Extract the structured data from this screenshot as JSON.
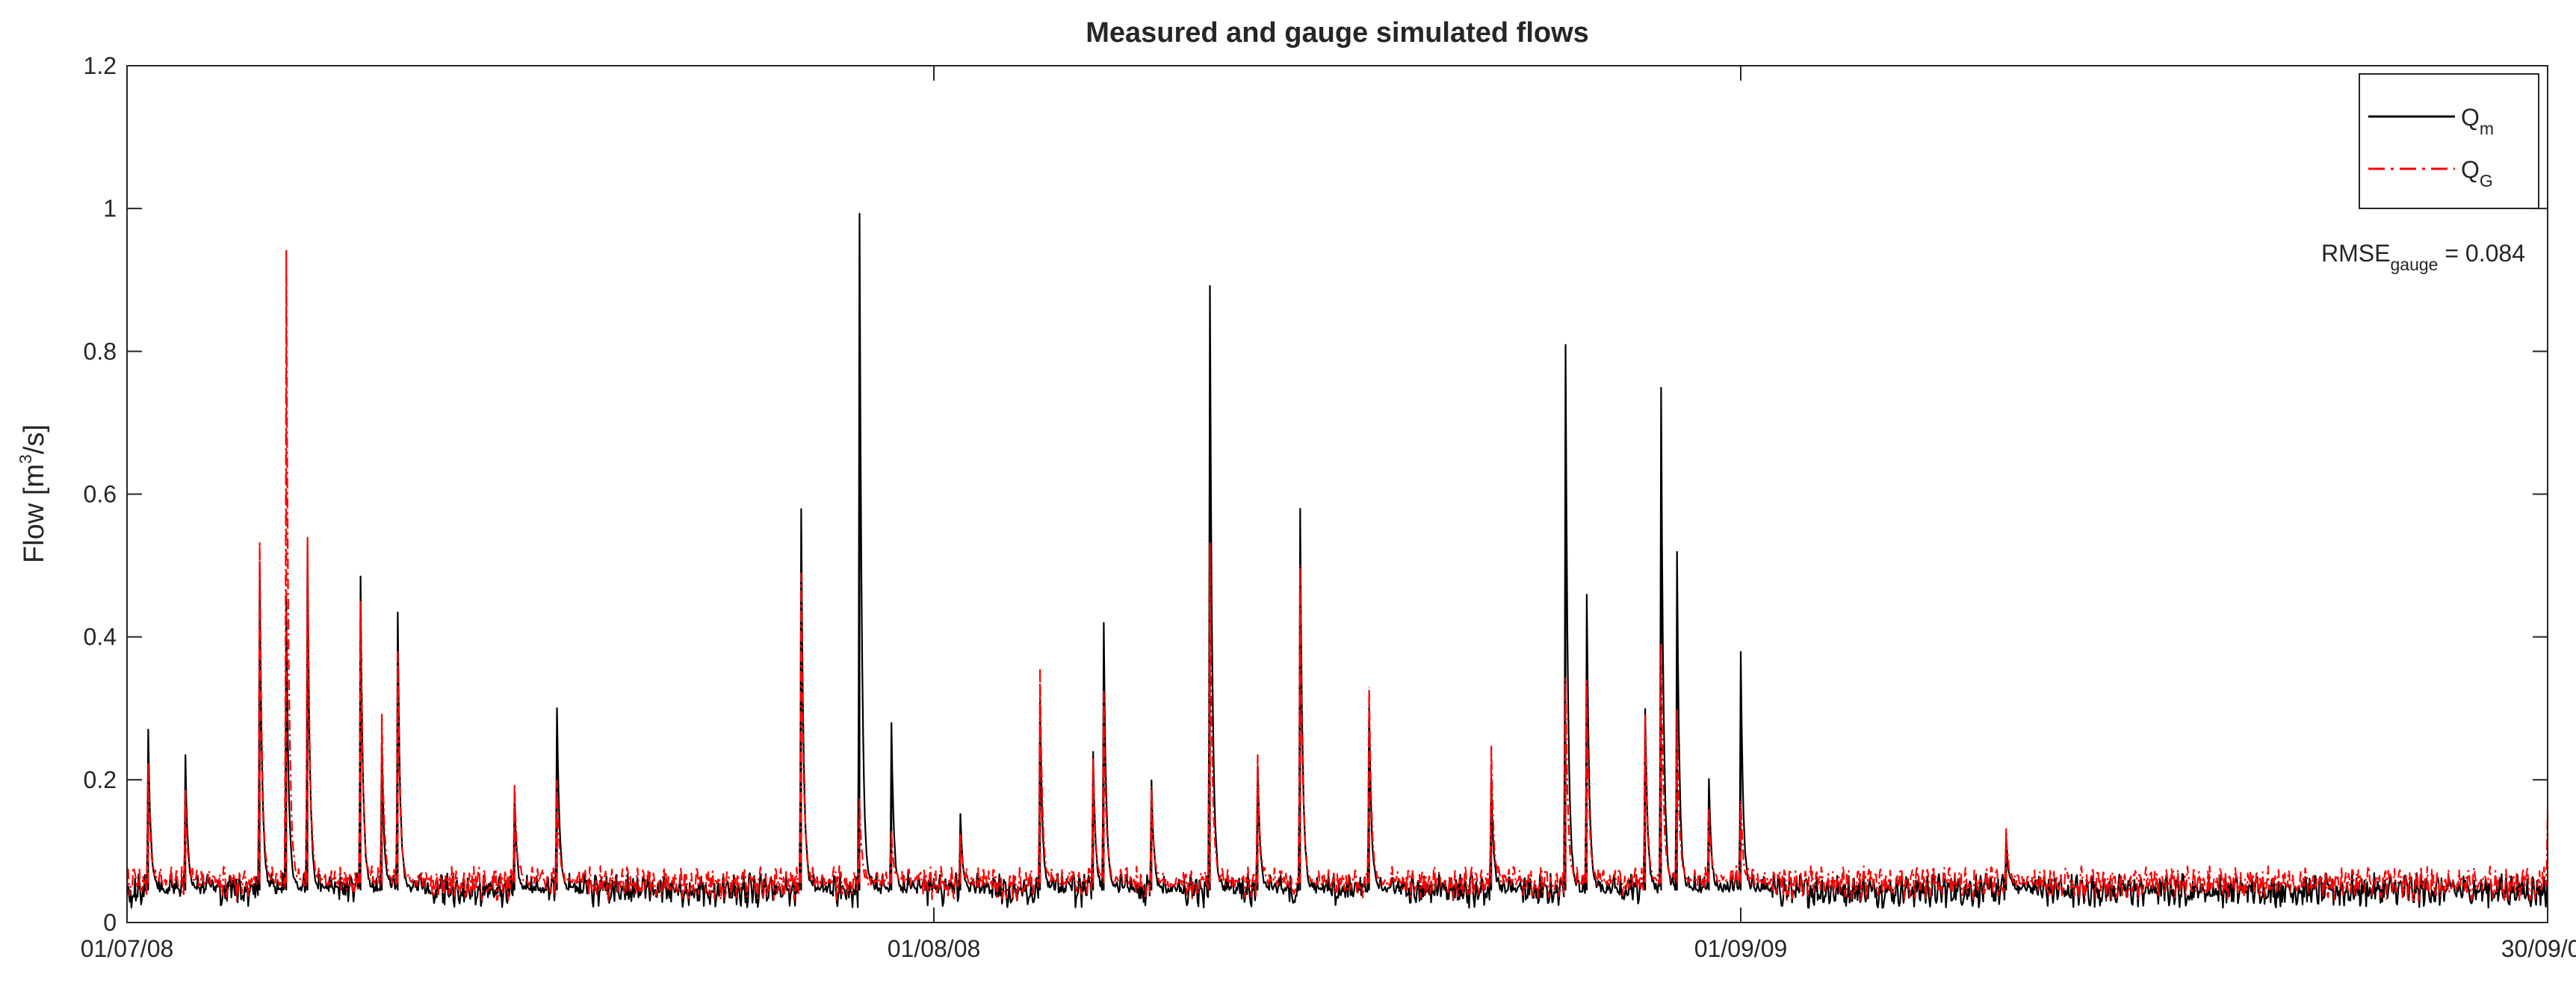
{
  "chart_data": {
    "type": "line",
    "title": "Measured and gauge simulated flows",
    "ylabel": "Flow [m3/s]",
    "ylabel_parts": {
      "main": "Flow [m",
      "sup": "3",
      "tail": "/s]"
    },
    "xlabel": "",
    "ylim": [
      0,
      1.2
    ],
    "yticks": [
      0,
      0.2,
      0.4,
      0.6,
      0.8,
      1,
      1.2
    ],
    "ytick_labels": [
      "0",
      "0.2",
      "0.4",
      "0.6",
      "0.8",
      "1",
      "1.2"
    ],
    "xlim": [
      "2008-07-01",
      "2009-09-30"
    ],
    "xtick_labels": [
      "01/07/08",
      "01/08/08",
      "01/09/09",
      "30/09/09"
    ],
    "grid": false,
    "legend_location": "top-right",
    "annotation": {
      "main": "RMSE",
      "sub": "gauge",
      "tail": " = 0.084"
    },
    "series": [
      {
        "name": "Qm",
        "legend_main": "Q",
        "legend_sub": "m",
        "color": "#000000",
        "style": "solid",
        "baseline": 0.045,
        "peaks": [
          {
            "x": "2008-07-05",
            "y": 0.27
          },
          {
            "x": "2008-07-12",
            "y": 0.23
          },
          {
            "x": "2008-07-26",
            "y": 0.5
          },
          {
            "x": "2008-07-31",
            "y": 0.45
          },
          {
            "x": "2008-08-04",
            "y": 0.53
          },
          {
            "x": "2008-08-14",
            "y": 0.48
          },
          {
            "x": "2008-08-18",
            "y": 0.25
          },
          {
            "x": "2008-08-21",
            "y": 0.43
          },
          {
            "x": "2008-09-12",
            "y": 0.18
          },
          {
            "x": "2008-09-20",
            "y": 0.3
          },
          {
            "x": "2008-11-05",
            "y": 0.58
          },
          {
            "x": "2008-11-16",
            "y": 0.99
          },
          {
            "x": "2008-11-22",
            "y": 0.28
          },
          {
            "x": "2008-12-05",
            "y": 0.15
          },
          {
            "x": "2008-12-20",
            "y": 0.31
          },
          {
            "x": "2008-12-30",
            "y": 0.24
          },
          {
            "x": "2009-01-01",
            "y": 0.42
          },
          {
            "x": "2009-01-10",
            "y": 0.2
          },
          {
            "x": "2009-01-21",
            "y": 0.89
          },
          {
            "x": "2009-01-30",
            "y": 0.22
          },
          {
            "x": "2009-02-07",
            "y": 0.58
          },
          {
            "x": "2009-02-20",
            "y": 0.3
          },
          {
            "x": "2009-03-15",
            "y": 0.2
          },
          {
            "x": "2009-03-29",
            "y": 0.81
          },
          {
            "x": "2009-04-02",
            "y": 0.46
          },
          {
            "x": "2009-04-13",
            "y": 0.3
          },
          {
            "x": "2009-04-16",
            "y": 0.75
          },
          {
            "x": "2009-04-19",
            "y": 0.52
          },
          {
            "x": "2009-04-25",
            "y": 0.2
          },
          {
            "x": "2009-05-01",
            "y": 0.38
          },
          {
            "x": "2009-06-20",
            "y": 0.12
          }
        ]
      },
      {
        "name": "QG",
        "legend_main": "Q",
        "legend_sub": "G",
        "color": "#ff0000",
        "style": "dashdot",
        "baseline": 0.055,
        "peaks": [
          {
            "x": "2008-07-05",
            "y": 0.22
          },
          {
            "x": "2008-07-12",
            "y": 0.18
          },
          {
            "x": "2008-07-26",
            "y": 0.53
          },
          {
            "x": "2008-07-31",
            "y": 0.94
          },
          {
            "x": "2008-08-04",
            "y": 0.54
          },
          {
            "x": "2008-08-14",
            "y": 0.45
          },
          {
            "x": "2008-08-18",
            "y": 0.29
          },
          {
            "x": "2008-08-21",
            "y": 0.38
          },
          {
            "x": "2008-09-12",
            "y": 0.19
          },
          {
            "x": "2008-09-20",
            "y": 0.2
          },
          {
            "x": "2008-11-05",
            "y": 0.49
          },
          {
            "x": "2008-11-16",
            "y": 0.17
          },
          {
            "x": "2008-11-22",
            "y": 0.13
          },
          {
            "x": "2008-12-05",
            "y": 0.12
          },
          {
            "x": "2008-12-20",
            "y": 0.35
          },
          {
            "x": "2008-12-30",
            "y": 0.23
          },
          {
            "x": "2009-01-01",
            "y": 0.32
          },
          {
            "x": "2009-01-10",
            "y": 0.19
          },
          {
            "x": "2009-01-21",
            "y": 0.53
          },
          {
            "x": "2009-01-30",
            "y": 0.23
          },
          {
            "x": "2009-02-07",
            "y": 0.5
          },
          {
            "x": "2009-02-20",
            "y": 0.33
          },
          {
            "x": "2009-03-15",
            "y": 0.25
          },
          {
            "x": "2009-03-29",
            "y": 0.34
          },
          {
            "x": "2009-04-02",
            "y": 0.34
          },
          {
            "x": "2009-04-13",
            "y": 0.29
          },
          {
            "x": "2009-04-16",
            "y": 0.39
          },
          {
            "x": "2009-04-19",
            "y": 0.3
          },
          {
            "x": "2009-04-25",
            "y": 0.16
          },
          {
            "x": "2009-05-01",
            "y": 0.17
          },
          {
            "x": "2009-06-20",
            "y": 0.13
          },
          {
            "x": "2009-09-30",
            "y": 0.16
          }
        ]
      }
    ]
  }
}
